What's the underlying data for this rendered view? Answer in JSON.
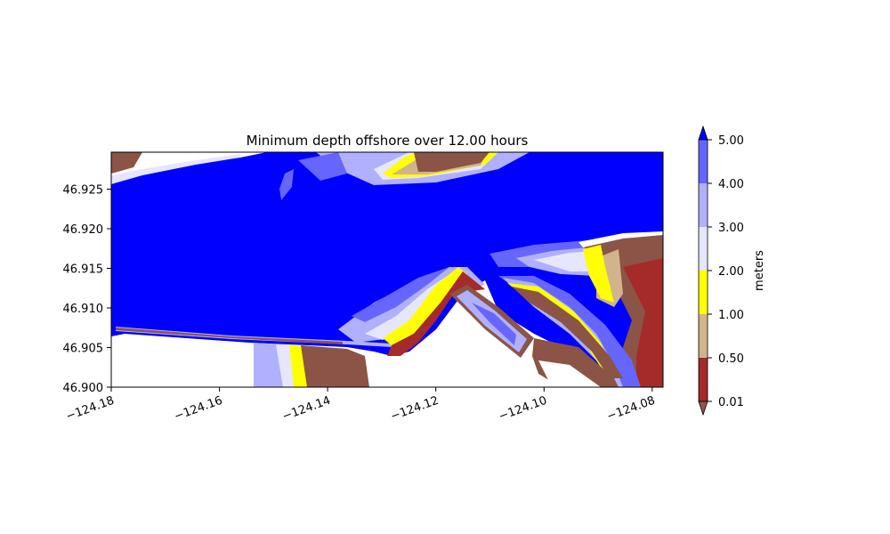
{
  "chart_data": {
    "type": "heatmap",
    "title": "Minimum depth offshore over 12.00 hours",
    "x_ticks": [
      "−124.18",
      "−124.16",
      "−124.14",
      "−124.12",
      "−124.10",
      "−124.08"
    ],
    "x_tick_values": [
      -124.18,
      -124.16,
      -124.14,
      -124.12,
      -124.1,
      -124.08
    ],
    "xlim": [
      -124.18,
      -124.078
    ],
    "y_ticks": [
      "46.900",
      "46.905",
      "46.910",
      "46.915",
      "46.920",
      "46.925"
    ],
    "y_tick_values": [
      46.9,
      46.905,
      46.91,
      46.915,
      46.92,
      46.925
    ],
    "ylim": [
      46.9,
      46.9297
    ],
    "x_tick_rotation_deg": 20,
    "colorbar": {
      "label": "meters",
      "levels": [
        "0.01",
        "0.50",
        "1.00",
        "2.00",
        "3.00",
        "4.00",
        "5.00"
      ],
      "bands": [
        {
          "from": 0.01,
          "to": 0.5,
          "color": "#a52a2a"
        },
        {
          "from": 0.5,
          "to": 1.0,
          "color": "#d2b48c"
        },
        {
          "from": 1.0,
          "to": 2.0,
          "color": "#ffff00"
        },
        {
          "from": 2.0,
          "to": 3.0,
          "color": "#e6e6ff"
        },
        {
          "from": 3.0,
          "to": 4.0,
          "color": "#b0b0ff"
        },
        {
          "from": 4.0,
          "to": 5.0,
          "color": "#6666ff"
        }
      ],
      "extend_max_color": "#0000ff",
      "extend_min_color": "#8b5a4a"
    },
    "colors": {
      "deep": "#0000ff",
      "dry_land": "#ffffff",
      "shore_brown": "#8b5446",
      "band_6": "#6666ff",
      "band_5": "#b0b0ff",
      "band_4": "#e6e6ff",
      "band_3": "#ffff00",
      "band_2": "#d2b48c",
      "band_1": "#a52a2a"
    },
    "grid": false
  }
}
